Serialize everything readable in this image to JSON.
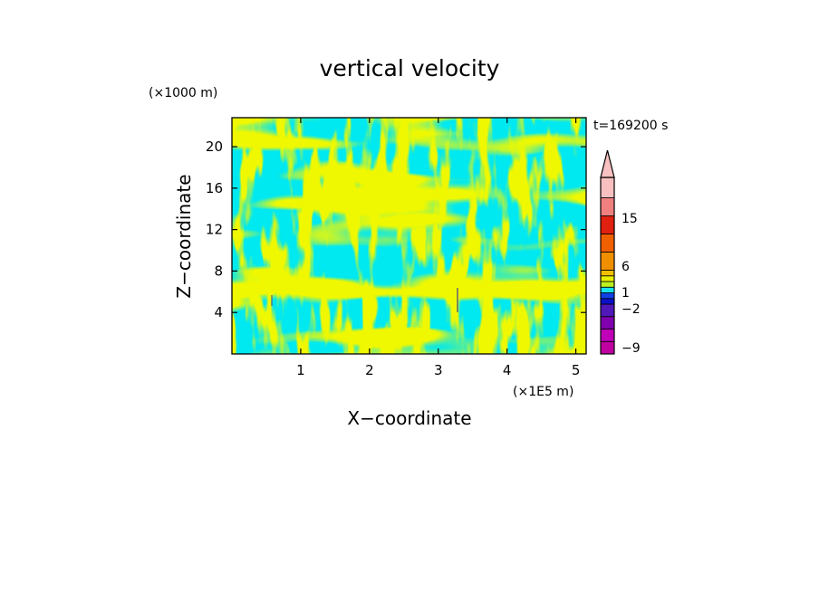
{
  "chart_data": {
    "type": "heatmap",
    "title": "vertical velocity",
    "xlabel": "X−coordinate",
    "ylabel": "Z−coordinate",
    "x_unit": "(×1E5 m)",
    "y_unit": "(×1000 m)",
    "time_label": "t=169200 s",
    "xlim": [
      0,
      5.15
    ],
    "ylim": [
      0,
      22.8
    ],
    "x_ticks": [
      1,
      2,
      3,
      4,
      5
    ],
    "y_ticks": [
      4,
      8,
      12,
      16,
      20
    ],
    "colorbar": {
      "labels": [
        {
          "text": "15",
          "value": 15
        },
        {
          "text": "6",
          "value": 6
        },
        {
          "text": "1",
          "value": 1
        },
        {
          "text": "−2",
          "value": -2
        },
        {
          "text": "−9",
          "value": -9
        }
      ],
      "levels": [
        -9,
        -7,
        -5,
        -3,
        -2,
        -1,
        0,
        0.5,
        1,
        2,
        4,
        6,
        9,
        12,
        15,
        18
      ],
      "colors": [
        "#c000a0",
        "#c000b8",
        "#8000b0",
        "#5018b8",
        "#0a10c8",
        "#1040e8",
        "#18e0f0",
        "#bcf020",
        "#e8f000",
        "#f0c000",
        "#f09000",
        "#f06000",
        "#e02010",
        "#f08080",
        "#f8c0c0"
      ],
      "extend_max_color": "#f8c0c0"
    },
    "field": {
      "background": "#00e8f0",
      "positive_band": "#dcf000",
      "dominant_values": [
        -0.5,
        0.3
      ]
    }
  }
}
